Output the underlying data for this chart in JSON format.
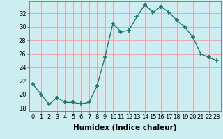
{
  "x": [
    0,
    1,
    2,
    3,
    4,
    5,
    6,
    7,
    8,
    9,
    10,
    11,
    12,
    13,
    14,
    15,
    16,
    17,
    18,
    19,
    20,
    21,
    22,
    23
  ],
  "y": [
    21.5,
    20.0,
    18.5,
    19.5,
    18.8,
    18.8,
    18.6,
    18.8,
    21.2,
    25.5,
    30.5,
    29.3,
    29.5,
    31.5,
    33.3,
    32.2,
    33.0,
    32.2,
    31.0,
    30.0,
    28.5,
    26.0,
    25.5,
    25.0
  ],
  "line_color": "#1a7a6a",
  "marker": "+",
  "marker_size": 4,
  "marker_linewidth": 1.2,
  "line_width": 1.0,
  "xlabel": "Humidex (Indice chaleur)",
  "xlim": [
    -0.5,
    23.5
  ],
  "ylim": [
    17.5,
    33.8
  ],
  "yticks": [
    18,
    20,
    22,
    24,
    26,
    28,
    30,
    32
  ],
  "xticks": [
    0,
    1,
    2,
    3,
    4,
    5,
    6,
    7,
    8,
    9,
    10,
    11,
    12,
    13,
    14,
    15,
    16,
    17,
    18,
    19,
    20,
    21,
    22,
    23
  ],
  "xtick_labels": [
    "0",
    "1",
    "2",
    "3",
    "4",
    "5",
    "6",
    "7",
    "8",
    "9",
    "10",
    "11",
    "12",
    "13",
    "14",
    "15",
    "16",
    "17",
    "18",
    "19",
    "20",
    "21",
    "22",
    "23"
  ],
  "bg_color": "#cceef0",
  "grid_color": "#e8a0a0",
  "axis_fontsize": 6.5,
  "tick_fontsize": 6.0,
  "xlabel_fontsize": 7.5
}
